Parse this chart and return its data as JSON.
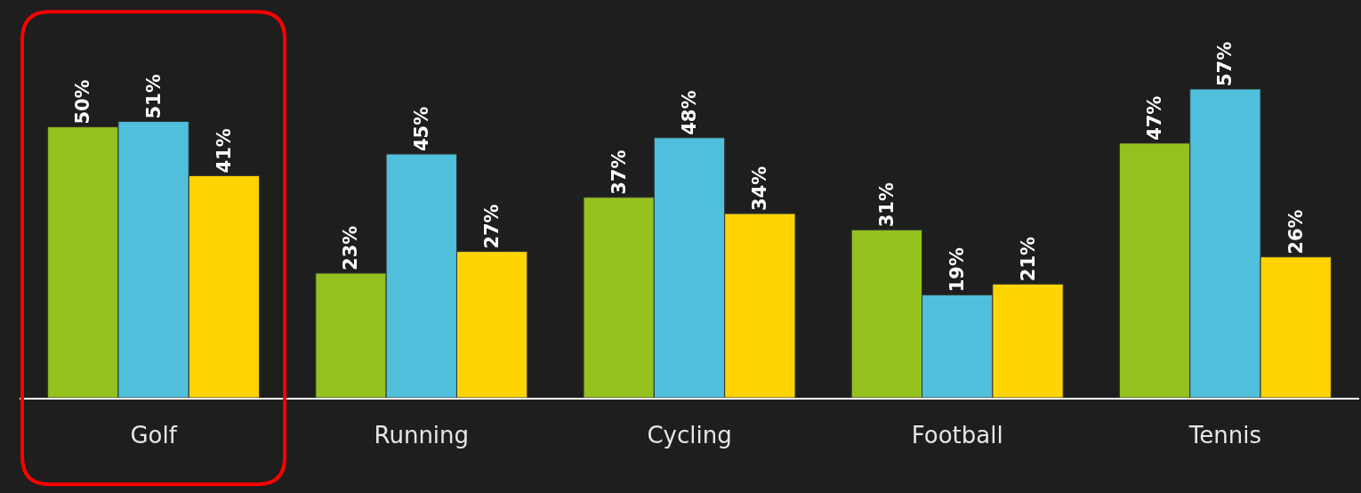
{
  "chart_data": {
    "type": "bar",
    "categories": [
      "Golf",
      "Running",
      "Cycling",
      "Football",
      "Tennis"
    ],
    "series": [
      {
        "color": "#95c11f",
        "values": [
          50,
          23,
          37,
          31,
          47
        ],
        "value_labels": [
          "50%",
          "23%",
          "37%",
          "31%",
          "47%"
        ]
      },
      {
        "color": "#50c0dc",
        "values": [
          51,
          45,
          48,
          19,
          57
        ],
        "value_labels": [
          "51%",
          "45%",
          "48%",
          "19%",
          "57%"
        ]
      },
      {
        "color": "#ffd400",
        "values": [
          41,
          27,
          34,
          21,
          26
        ],
        "value_labels": [
          "41%",
          "27%",
          "34%",
          "21%",
          "26%"
        ]
      }
    ],
    "grid": false,
    "legend": false
  }
}
